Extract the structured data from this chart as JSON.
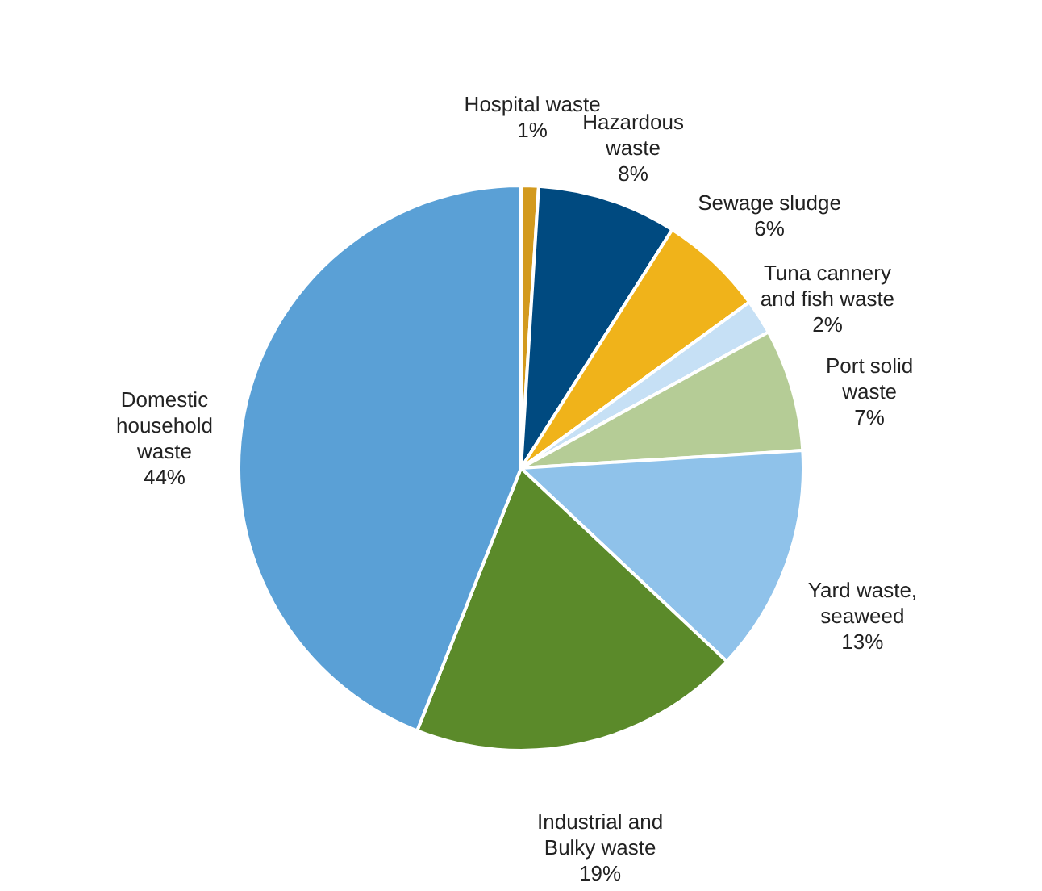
{
  "chart_data": {
    "type": "pie",
    "categories": [
      "Hospital waste",
      "Hazardous waste",
      "Sewage sludge",
      "Tuna cannery and fish waste",
      "Port solid waste",
      "Yard waste, seaweed",
      "Industrial and Bulky waste",
      "Domestic household waste"
    ],
    "values": [
      1,
      8,
      6,
      2,
      7,
      13,
      19,
      44
    ],
    "value_labels": [
      "1%",
      "8%",
      "6%",
      "2%",
      "7%",
      "13%",
      "19%",
      "44%"
    ],
    "colors": [
      "#d39a1e",
      "#004a80",
      "#f0b31a",
      "#c6e0f5",
      "#b5cc96",
      "#8fc2ea",
      "#5b8a2a",
      "#5aa0d6"
    ]
  }
}
